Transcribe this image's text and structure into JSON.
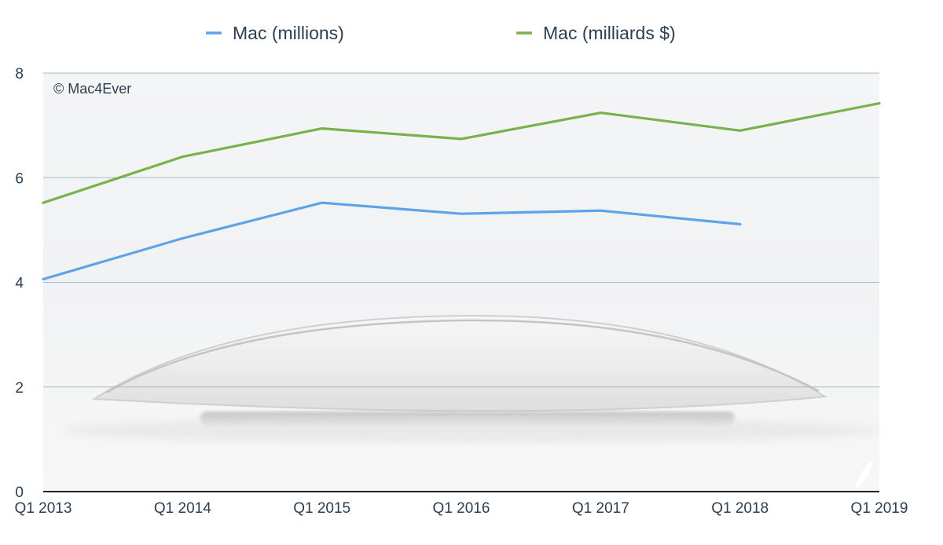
{
  "chart_data": {
    "type": "line",
    "x": [
      "Q1 2013",
      "Q1 2014",
      "Q1 2015",
      "Q1 2016",
      "Q1 2017",
      "Q1 2018",
      "Q1 2019"
    ],
    "series": [
      {
        "name": "Mac (millions)",
        "color": "#5ea3e8",
        "values": [
          4.06,
          4.84,
          5.52,
          5.31,
          5.37,
          5.11,
          null
        ]
      },
      {
        "name": "Mac (milliards $)",
        "color": "#77b24a",
        "values": [
          5.52,
          6.4,
          6.94,
          6.74,
          7.24,
          6.9,
          7.42
        ]
      }
    ],
    "yticks": [
      "0",
      "2",
      "4",
      "6",
      "8"
    ],
    "ylim": [
      0,
      8
    ],
    "grid": true,
    "legend_position": "top-center",
    "title": "",
    "xlabel": "",
    "ylabel": ""
  },
  "watermark": "© Mac4Ever",
  "background_image": "magic-mouse-photo"
}
